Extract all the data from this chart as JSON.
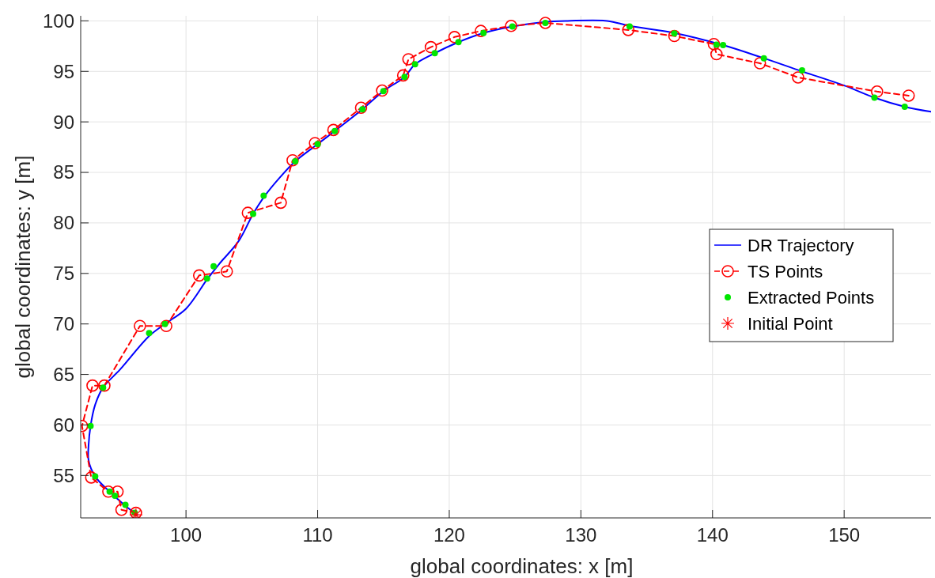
{
  "chart_data": {
    "type": "line",
    "xlabel": "global coordinates: x [m]",
    "ylabel": "global coordinates: y [m]",
    "xlim": [
      92,
      156.6
    ],
    "ylim": [
      50.8,
      100.5
    ],
    "xticks": [
      100,
      110,
      120,
      130,
      140,
      150
    ],
    "yticks": [
      55,
      60,
      65,
      70,
      75,
      80,
      85,
      90,
      95,
      100
    ],
    "grid": true,
    "legend": "right",
    "series": [
      {
        "name": "DR Trajectory",
        "color": "#0000ff",
        "marker": "none",
        "line_style": "solid",
        "x": [
          96.3,
          95.4,
          94.2,
          93.1,
          92.6,
          92.6,
          92.75,
          93.1,
          93.7,
          95,
          97.2,
          98.4,
          100,
          101.6,
          102.5,
          104,
          105.1,
          106,
          107.2,
          108.3,
          110,
          111.3,
          113.4,
          115,
          116.6,
          117.4,
          118.9,
          120.7,
          122.6,
          124.8,
          127.3,
          129,
          132,
          133.7,
          137.1,
          140.8,
          143.9,
          146.8,
          150,
          152.3,
          154.6,
          156.6
        ],
        "values": [
          51.1,
          52.0,
          53.4,
          54.9,
          56.5,
          58,
          59.9,
          62,
          63.7,
          65.5,
          68.8,
          70.0,
          71.5,
          74.4,
          75.9,
          78.2,
          80.9,
          82.7,
          84.6,
          86.1,
          87.8,
          89.1,
          91.25,
          93.05,
          94.45,
          95.7,
          96.8,
          97.9,
          98.8,
          99.45,
          99.9,
          100.0,
          100.0,
          99.5,
          98.8,
          97.6,
          96.3,
          95.0,
          93.6,
          92.4,
          91.5,
          91.0
        ]
      },
      {
        "name": "TS Points",
        "color": "#ff0000",
        "marker": "circle",
        "line_style": "dashed",
        "x": [
          96.2,
          95.1,
          94.8,
          94.1,
          92.8,
          92.1,
          92.9,
          93.8,
          96.5,
          98.5,
          101.0,
          103.1,
          104.7,
          107.2,
          108.1,
          109.8,
          111.2,
          113.3,
          114.9,
          116.5,
          116.9,
          118.6,
          120.4,
          122.4,
          124.7,
          127.3,
          133.6,
          137.1,
          140.1,
          140.3,
          143.6,
          146.5,
          152.5,
          154.9
        ],
        "values": [
          51.3,
          51.6,
          53.4,
          53.4,
          54.8,
          59.9,
          63.9,
          63.9,
          69.8,
          69.8,
          74.8,
          75.2,
          81.0,
          82.0,
          86.2,
          87.9,
          89.2,
          91.4,
          93.1,
          94.6,
          96.2,
          97.4,
          98.4,
          99.0,
          99.5,
          99.8,
          99.1,
          98.5,
          97.7,
          96.7,
          95.8,
          94.4,
          93.0,
          92.6
        ]
      },
      {
        "name": "Extracted Points",
        "type": "scatter",
        "color": "#00e600",
        "marker": "circle",
        "x": [
          96.1,
          95.4,
          94.6,
          94.2,
          93.1,
          92.75,
          93.7,
          97.2,
          98.4,
          101.6,
          102.1,
          105.1,
          105.9,
          108.3,
          110.0,
          111.3,
          113.4,
          115.0,
          116.6,
          117.4,
          118.9,
          120.7,
          122.6,
          124.8,
          127.3,
          133.7,
          137.1,
          140.3,
          140.8,
          143.9,
          146.8,
          152.3,
          154.6
        ],
        "values": [
          51.3,
          52.1,
          53.0,
          53.4,
          54.9,
          59.9,
          63.7,
          69.1,
          70.0,
          74.5,
          75.7,
          80.9,
          82.7,
          86.1,
          87.8,
          89.1,
          91.25,
          93.05,
          94.45,
          95.7,
          96.8,
          97.9,
          98.8,
          99.45,
          99.8,
          99.45,
          98.75,
          97.65,
          97.6,
          96.3,
          95.1,
          92.4,
          91.5
        ]
      },
      {
        "name": "Initial Point",
        "type": "scatter",
        "color": "#ff0000",
        "marker": "cross",
        "x": [
          96.2
        ],
        "values": [
          51.1
        ]
      }
    ]
  }
}
